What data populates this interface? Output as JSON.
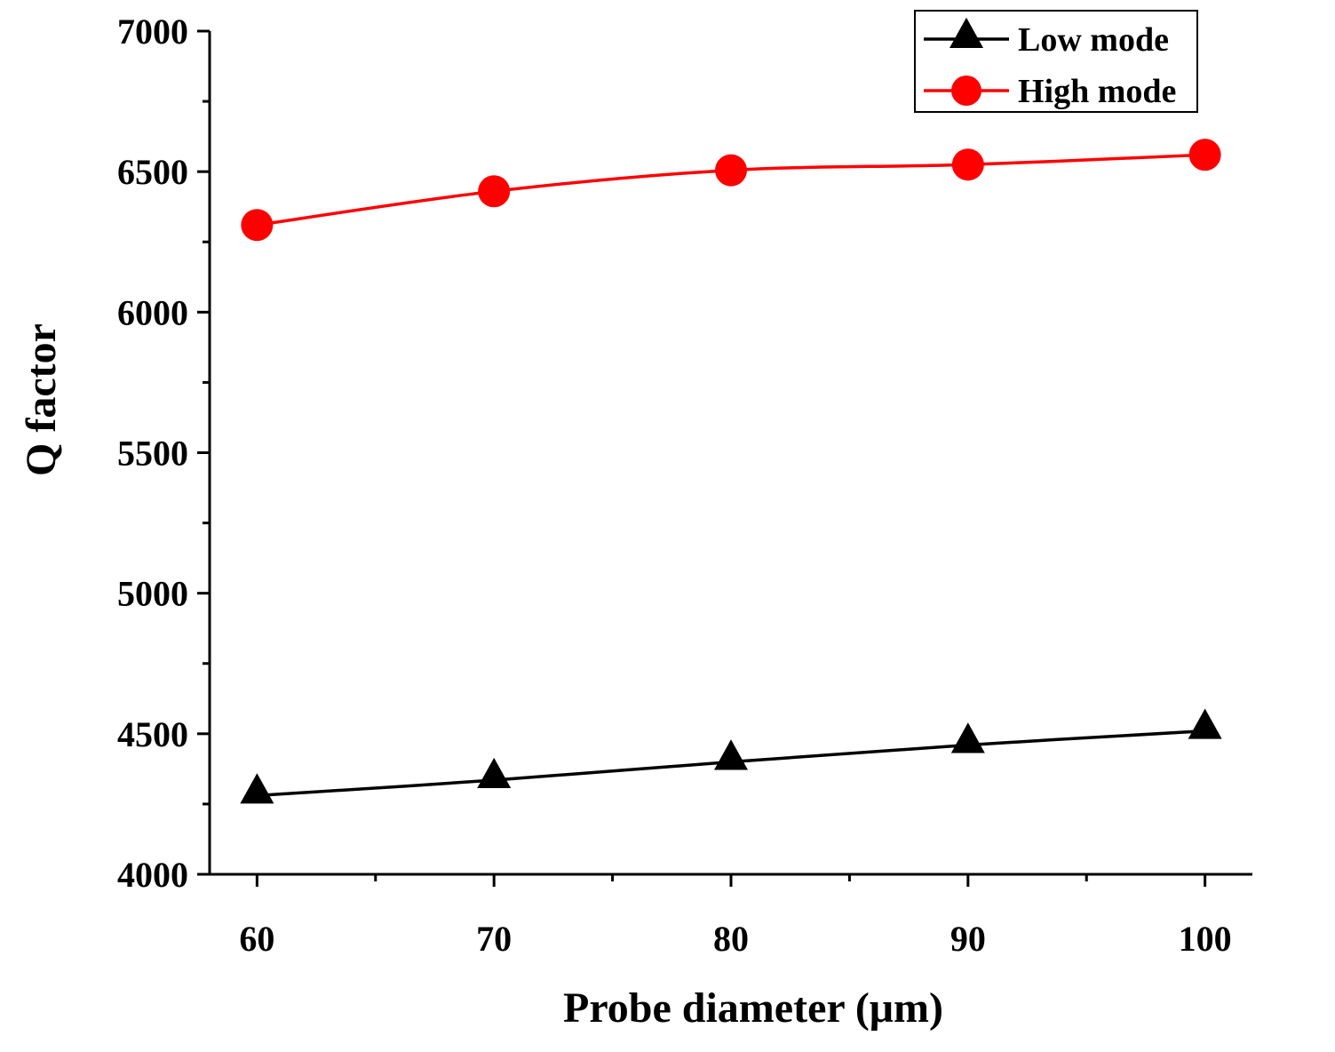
{
  "chart_data": {
    "type": "line",
    "title": "",
    "xlabel": "Probe diameter (μm)",
    "ylabel": "Q factor",
    "x": [
      60,
      70,
      80,
      90,
      100
    ],
    "xlim": [
      58,
      102
    ],
    "ylim": [
      4000,
      7000
    ],
    "xticks": [
      60,
      70,
      80,
      90,
      100
    ],
    "xtick_labels": [
      "60",
      "70",
      "80",
      "90",
      "100"
    ],
    "yticks": [
      4000,
      4500,
      5000,
      5500,
      6000,
      6500,
      7000
    ],
    "ytick_labels": [
      "4000",
      "4500",
      "5000",
      "5500",
      "6000",
      "6500",
      "7000"
    ],
    "grid": false,
    "legend_position": "top-right",
    "series": [
      {
        "name": "Low mode",
        "values": [
          4280,
          4335,
          4400,
          4460,
          4510
        ],
        "color": "#000000",
        "marker": "triangle"
      },
      {
        "name": "High mode",
        "values": [
          6310,
          6430,
          6505,
          6525,
          6560
        ],
        "color": "#ff0000",
        "marker": "circle"
      }
    ]
  }
}
